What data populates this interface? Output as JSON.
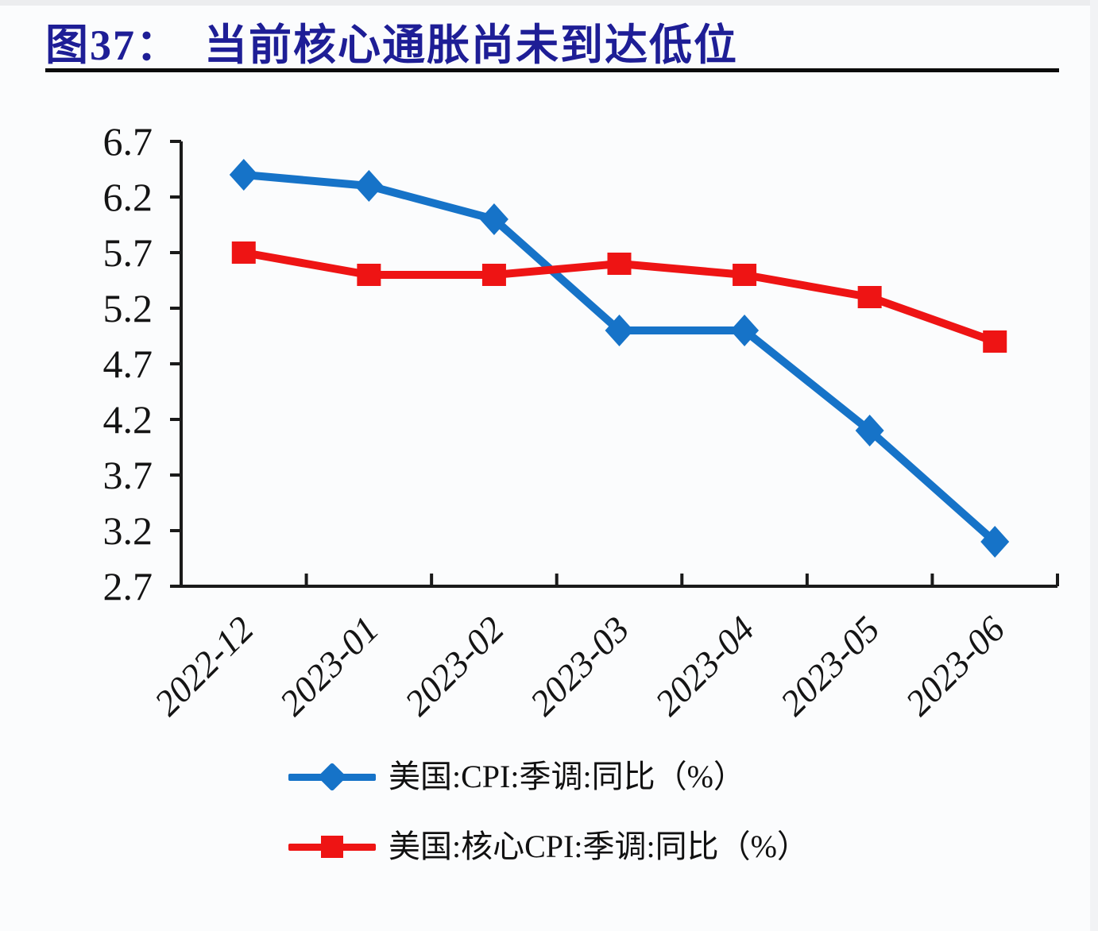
{
  "figure": {
    "title_prefix": "图37：",
    "title_text": "当前核心通胀尚未到达低位"
  },
  "chart_data": {
    "type": "line",
    "title": "图37：当前核心通胀尚未到达低位",
    "categories": [
      "2022-12",
      "2023-01",
      "2023-02",
      "2023-03",
      "2023-04",
      "2023-05",
      "2023-06"
    ],
    "series": [
      {
        "name": "美国:CPI:季调:同比（%）",
        "marker": "diamond",
        "color": "#1673C8",
        "values": [
          6.4,
          6.3,
          6.0,
          5.0,
          5.0,
          4.1,
          3.1
        ]
      },
      {
        "name": "美国:核心CPI:季调:同比（%）",
        "marker": "square",
        "color": "#EE1414",
        "values": [
          5.7,
          5.5,
          5.5,
          5.6,
          5.5,
          5.3,
          4.9
        ]
      }
    ],
    "ylim": [
      2.7,
      6.7
    ],
    "y_ticks": [
      "6.7",
      "6.2",
      "5.7",
      "5.2",
      "4.7",
      "4.2",
      "3.7",
      "3.2",
      "2.7"
    ],
    "xlabel": "",
    "ylabel": "",
    "grid": false,
    "legend_position": "bottom-left",
    "x_label_rotation": -45
  },
  "colors": {
    "title": "#1E1E96",
    "axis": "#1A1A1A",
    "tick_text": "#141414",
    "rule": "#0B0B0B",
    "background": "#FBFCFD",
    "series_cpi": "#1673C8",
    "series_core_cpi": "#EE1414"
  }
}
